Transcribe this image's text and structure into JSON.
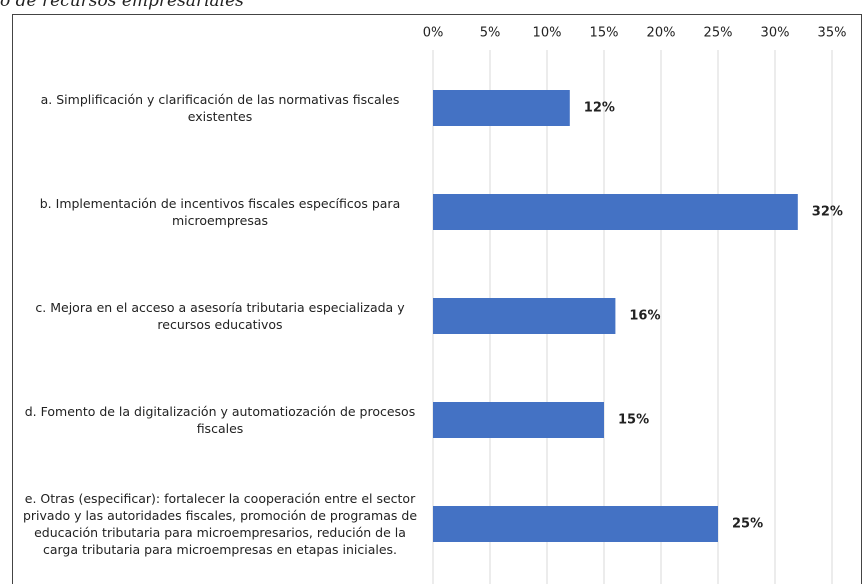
{
  "chart_data": {
    "type": "bar",
    "orientation": "horizontal",
    "title": "o de recursos empresariales",
    "categories": [
      "a. Simplificación y clarificación de las normativas fiscales existentes",
      "b. Implementación de incentivos fiscales específicos para microempresas",
      "c. Mejora en el acceso a asesoría tributaria especializada y recursos educativos",
      "d. Fomento de la digitalización y automatiozación de procesos fiscales",
      "e. Otras (especificar): fortalecer la cooperación entre el sector privado y las autoridades fiscales, promoción de programas de educación tributaria para microempresarios, redución de la carga tributaria para microempresas en etapas iniciales."
    ],
    "values": [
      12,
      32,
      16,
      15,
      25
    ],
    "value_labels": [
      "12%",
      "32%",
      "16%",
      "15%",
      "25%"
    ],
    "color": "#4472c4",
    "xlim": [
      0,
      35
    ],
    "xticks": [
      {
        "value": 0,
        "label": "0%"
      },
      {
        "value": 5,
        "label": "5%"
      },
      {
        "value": 10,
        "label": "10%"
      },
      {
        "value": 15,
        "label": "15%"
      },
      {
        "value": 20,
        "label": "20%"
      },
      {
        "value": 25,
        "label": "25%"
      },
      {
        "value": 30,
        "label": "30%"
      },
      {
        "value": 35,
        "label": "35%"
      }
    ],
    "grid": true
  }
}
